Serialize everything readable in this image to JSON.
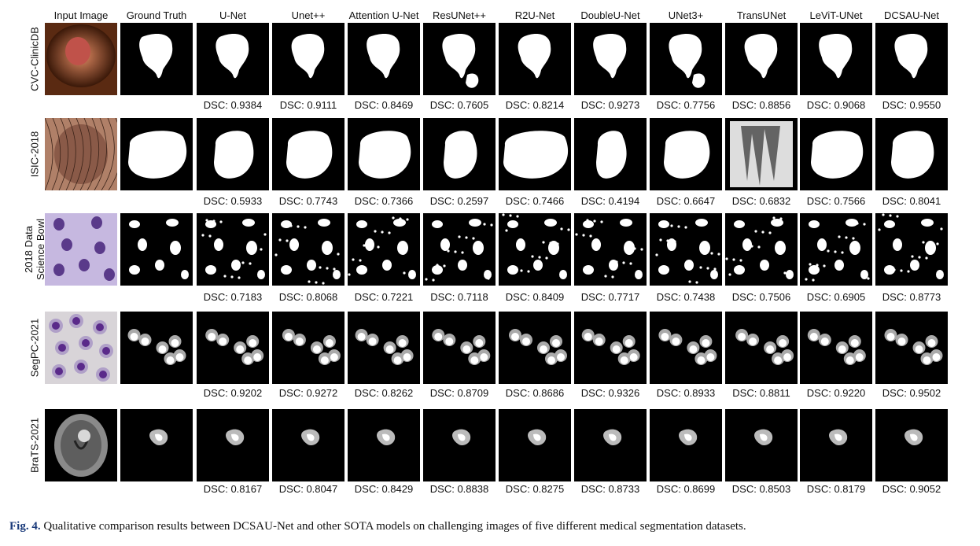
{
  "figure": {
    "columns": [
      "Input Image",
      "Ground Truth",
      "U-Net",
      "Unet++",
      "Attention U-Net",
      "ResUNet++",
      "R2U-Net",
      "DoubleU-Net",
      "UNet3+",
      "TransUNet",
      "LeViT-UNet",
      "DCSAU-Net"
    ],
    "rows": [
      {
        "label_lines": [
          "CVC-ClinicDB"
        ],
        "input_style": "endoscopy",
        "dsc": [
          "DSC: 0.9384",
          "DSC: 0.9111",
          "DSC: 0.8469",
          "DSC: 0.7605",
          "DSC: 0.8214",
          "DSC: 0.9273",
          "DSC: 0.7756",
          "DSC: 0.8856",
          "DSC: 0.9068",
          "DSC: 0.9550"
        ]
      },
      {
        "label_lines": [
          "ISIC-2018"
        ],
        "input_style": "skin",
        "dsc": [
          "DSC: 0.5933",
          "DSC: 0.7743",
          "DSC: 0.7366",
          "DSC: 0.2597",
          "DSC: 0.7466",
          "DSC: 0.4194",
          "DSC: 0.6647",
          "DSC: 0.6832",
          "DSC: 0.7566",
          "DSC: 0.8041"
        ]
      },
      {
        "label_lines": [
          "2018 Data",
          "Science Bowl"
        ],
        "input_style": "nuclei",
        "dsc": [
          "DSC: 0.7183",
          "DSC: 0.8068",
          "DSC: 0.7221",
          "DSC: 0.7118",
          "DSC: 0.8409",
          "DSC: 0.7717",
          "DSC: 0.7438",
          "DSC: 0.7506",
          "DSC: 0.6905",
          "DSC: 0.8773"
        ]
      },
      {
        "label_lines": [
          "SegPC-2021"
        ],
        "input_style": "cells",
        "dsc": [
          "DSC: 0.9202",
          "DSC: 0.9272",
          "DSC: 0.8262",
          "DSC: 0.8709",
          "DSC: 0.8686",
          "DSC: 0.9326",
          "DSC: 0.8933",
          "DSC: 0.8811",
          "DSC: 0.9220",
          "DSC: 0.9502"
        ]
      },
      {
        "label_lines": [
          "BraTS-2021"
        ],
        "input_style": "mri",
        "dsc": [
          "DSC: 0.8167",
          "DSC: 0.8047",
          "DSC: 0.8429",
          "DSC: 0.8838",
          "DSC: 0.8275",
          "DSC: 0.8733",
          "DSC: 0.8699",
          "DSC: 0.8503",
          "DSC: 0.8179",
          "DSC: 0.9052"
        ]
      }
    ]
  },
  "caption": {
    "label": "Fig. 4.",
    "text": "Qualitative comparison results between DCSAU-Net and other SOTA models on challenging images of five different medical segmentation datasets."
  }
}
